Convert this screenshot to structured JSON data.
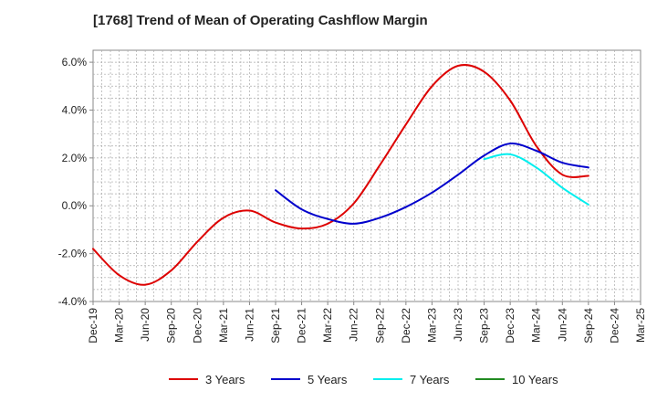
{
  "chart_data": {
    "type": "line",
    "title": "[1768]  Trend of Mean of Operating Cashflow Margin",
    "xlabel": "",
    "ylabel": "",
    "x_tick_labels": [
      "Dec-19",
      "Mar-20",
      "Jun-20",
      "Sep-20",
      "Dec-20",
      "Mar-21",
      "Jun-21",
      "Sep-21",
      "Dec-21",
      "Mar-22",
      "Jun-22",
      "Sep-22",
      "Dec-22",
      "Mar-23",
      "Jun-23",
      "Sep-23",
      "Dec-23",
      "Mar-24",
      "Jun-24",
      "Sep-24",
      "Dec-24",
      "Mar-25"
    ],
    "y_tick_labels": [
      "6.0%",
      "4.0%",
      "2.0%",
      "0.0%",
      "-2.0%",
      "-4.0%"
    ],
    "ylim": [
      -4.0,
      6.5
    ],
    "y_ticks": [
      6.0,
      4.0,
      2.0,
      0.0,
      -2.0,
      -4.0
    ],
    "grid": true,
    "legend_position": "bottom",
    "series": [
      {
        "name": "3 Years",
        "color": "#dd0000",
        "x": [
          "Dec-19",
          "Mar-20",
          "Jun-20",
          "Sep-20",
          "Dec-20",
          "Mar-21",
          "Jun-21",
          "Sep-21",
          "Dec-21",
          "Mar-22",
          "Jun-22",
          "Sep-22",
          "Dec-22",
          "Mar-23",
          "Jun-23",
          "Sep-23",
          "Dec-23",
          "Mar-24",
          "Jun-24",
          "Sep-24"
        ],
        "values": [
          -1.8,
          -2.9,
          -3.3,
          -2.7,
          -1.5,
          -0.5,
          -0.2,
          -0.7,
          -0.95,
          -0.75,
          0.1,
          1.7,
          3.4,
          5.0,
          5.85,
          5.6,
          4.4,
          2.5,
          1.3,
          1.25
        ]
      },
      {
        "name": "5 Years",
        "color": "#0000cc",
        "x": [
          "Sep-21",
          "Dec-21",
          "Mar-22",
          "Jun-22",
          "Sep-22",
          "Dec-22",
          "Mar-23",
          "Jun-23",
          "Sep-23",
          "Dec-23",
          "Mar-24",
          "Jun-24",
          "Sep-24"
        ],
        "values": [
          0.65,
          -0.15,
          -0.55,
          -0.75,
          -0.5,
          -0.05,
          0.55,
          1.3,
          2.1,
          2.6,
          2.3,
          1.8,
          1.6
        ]
      },
      {
        "name": "7 Years",
        "color": "#00eeee",
        "x": [
          "Sep-23",
          "Dec-23",
          "Mar-24",
          "Jun-24",
          "Sep-24"
        ],
        "values": [
          1.95,
          2.15,
          1.6,
          0.75,
          0.05
        ]
      },
      {
        "name": "10 Years",
        "color": "#228b22",
        "x": [],
        "values": []
      }
    ]
  }
}
